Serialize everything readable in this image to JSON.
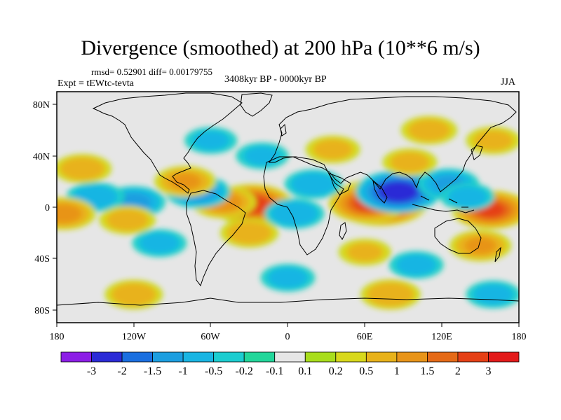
{
  "title": "Divergence (smoothed) at 200 hPa (10**6 m/s)",
  "stats": "rmsd= 0.52901 diff= 0.00179755",
  "experiment": "Expt = tEWtc-tevta",
  "period": "3408kyr BP - 0000kyr BP",
  "season": "JJA",
  "axes": {
    "x_labels": [
      "180",
      "120W",
      "60W",
      "0",
      "60E",
      "120E",
      "180"
    ],
    "y_labels": [
      "80N",
      "40N",
      "0",
      "40S",
      "80S"
    ]
  },
  "colorbar": {
    "labels": [
      "-3",
      "-2",
      "-1.5",
      "-1",
      "-0.5",
      "-0.2",
      "-0.1",
      "0.1",
      "0.2",
      "0.5",
      "1",
      "1.5",
      "2",
      "3"
    ],
    "colors": [
      "#8c1ee6",
      "#2b2bd6",
      "#1a6fe0",
      "#1c9ee0",
      "#19b5e3",
      "#1ccdd0",
      "#22d69a",
      "#e6e6e6",
      "#a8dd1c",
      "#d8d81c",
      "#e8b21a",
      "#e89419",
      "#e56a17",
      "#e54016",
      "#e31a1a"
    ]
  },
  "field_blobs": [
    {
      "lon": 72,
      "lat": 4,
      "value": 3.2
    },
    {
      "lon": 62,
      "lat": 3,
      "value": 2.0
    },
    {
      "lon": 86,
      "lat": 12,
      "value": -2.5
    },
    {
      "lon": -28,
      "lat": 2,
      "value": 2.3
    },
    {
      "lon": -50,
      "lat": 4,
      "value": 1.2
    },
    {
      "lon": -70,
      "lat": 12,
      "value": -1.2
    },
    {
      "lon": -80,
      "lat": 20,
      "value": 1.0
    },
    {
      "lon": -120,
      "lat": 4,
      "value": -1.1
    },
    {
      "lon": -150,
      "lat": 8,
      "value": -0.8
    },
    {
      "lon": -175,
      "lat": -5,
      "value": 1.2
    },
    {
      "lon": -125,
      "lat": -10,
      "value": 0.7
    },
    {
      "lon": -100,
      "lat": -28,
      "value": -0.6
    },
    {
      "lon": -30,
      "lat": -20,
      "value": 0.8
    },
    {
      "lon": 20,
      "lat": 18,
      "value": -0.8
    },
    {
      "lon": 5,
      "lat": -5,
      "value": -0.9
    },
    {
      "lon": 35,
      "lat": 45,
      "value": 0.6
    },
    {
      "lon": 95,
      "lat": 35,
      "value": 0.6
    },
    {
      "lon": 125,
      "lat": 18,
      "value": -1.0
    },
    {
      "lon": 158,
      "lat": -2,
      "value": 2.0
    },
    {
      "lon": 140,
      "lat": 8,
      "value": -0.6
    },
    {
      "lon": 150,
      "lat": -30,
      "value": 1.0
    },
    {
      "lon": 100,
      "lat": -45,
      "value": -0.6
    },
    {
      "lon": 60,
      "lat": -35,
      "value": 0.5
    },
    {
      "lon": -60,
      "lat": 52,
      "value": -0.5
    },
    {
      "lon": 160,
      "lat": 52,
      "value": 0.6
    },
    {
      "lon": -160,
      "lat": 30,
      "value": 0.8
    },
    {
      "lon": -20,
      "lat": 40,
      "value": -0.5
    },
    {
      "lon": 0,
      "lat": -55,
      "value": -0.6
    },
    {
      "lon": -120,
      "lat": -68,
      "value": 0.8
    },
    {
      "lon": 80,
      "lat": -68,
      "value": 0.9
    },
    {
      "lon": 160,
      "lat": -68,
      "value": -0.6
    },
    {
      "lon": 110,
      "lat": 60,
      "value": 0.7
    }
  ]
}
